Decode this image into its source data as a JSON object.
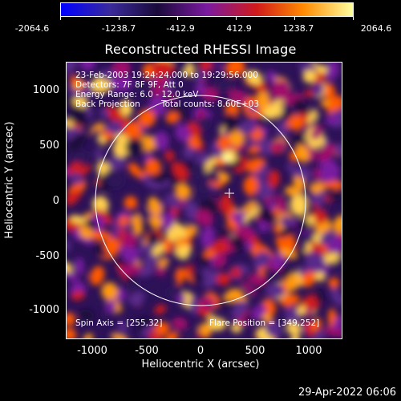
{
  "colorbar": {
    "ticks": [
      "-2064.6",
      "-1238.7",
      "-412.9",
      "412.9",
      "1238.7",
      "2064.6"
    ],
    "colors": [
      "#0000ff",
      "#3a2a9a",
      "#1a0a3a",
      "#7a1aa0",
      "#d01a1a",
      "#ff8a00",
      "#ffffa0"
    ]
  },
  "title": "Reconstructed RHESSI Image",
  "info": {
    "line1": "23-Feb-2003 19:24:24.000 to 19:29:56.000",
    "line2": "Detectors: 7F 8F 9F, Att 0",
    "line3": "Energy Range: 6.0 - 12.0 keV",
    "line4_left": "Back Projection",
    "line4_right": "Total counts: 8.60E+03",
    "spin_axis": "Spin Axis = [255,32]",
    "flare_position": "Flare Position = [349,252]"
  },
  "axes": {
    "ylabel": "Heliocentric Y (arcsec)",
    "xlabel": "Heliocentric X (arcsec)",
    "yticks": [
      "1000",
      "500",
      "0",
      "-500",
      "-1000"
    ],
    "xticks": [
      "-1000",
      "-500",
      "0",
      "500",
      "1000"
    ]
  },
  "datestamp": "29-Apr-2022 06:06",
  "image_palette": [
    "#1a0a3a",
    "#2d1258",
    "#5a2a8a",
    "#7a1aa0",
    "#a0106a",
    "#d01a1a",
    "#ff5a00",
    "#ff9a10",
    "#ffd050",
    "#ffffa0"
  ]
}
